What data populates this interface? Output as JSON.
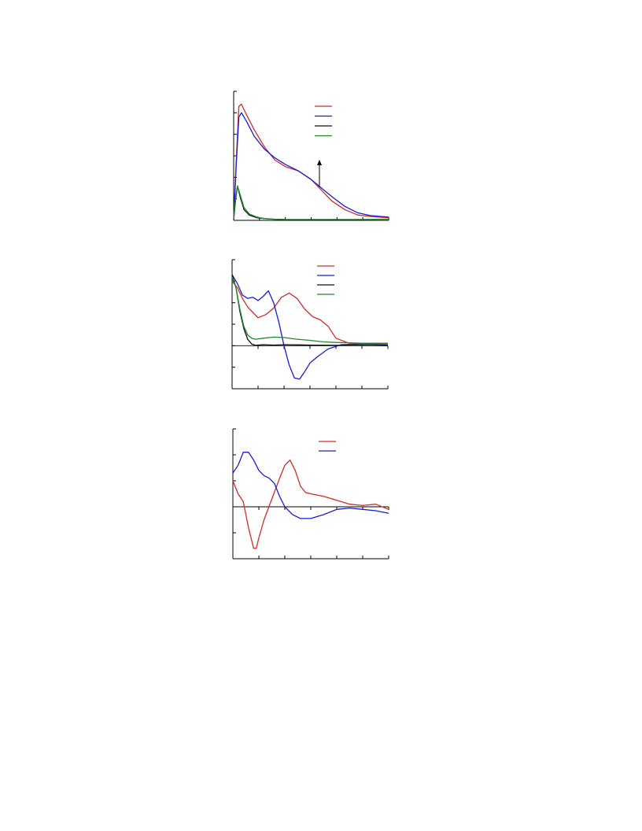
{
  "figure": {
    "panels": 3,
    "colors": {
      "red": "#d42a2a",
      "blue": "#1a1adb",
      "black": "#111111",
      "green": "#1f8a2a",
      "axis": "#000000"
    }
  },
  "chart_data": [
    {
      "type": "line",
      "panel": "top",
      "title": "",
      "xlabel": "",
      "ylabel": "",
      "xlim": [
        0,
        6
      ],
      "ylim": [
        0,
        6
      ],
      "grid": false,
      "legend": {
        "placement": "top-right",
        "entries": 4
      },
      "annotation": "upward-arrow",
      "series": [
        {
          "color": "red",
          "x": [
            0,
            0.1,
            0.2,
            0.3,
            0.5,
            0.8,
            1.2,
            1.6,
            2.0,
            2.5,
            3.0,
            3.4,
            3.8,
            4.3,
            4.8,
            5.3,
            6.0
          ],
          "y": [
            0,
            2.8,
            5.3,
            5.4,
            4.9,
            4.2,
            3.4,
            2.8,
            2.5,
            2.3,
            1.9,
            1.4,
            0.9,
            0.5,
            0.25,
            0.18,
            0.12
          ]
        },
        {
          "color": "blue",
          "x": [
            0,
            0.1,
            0.2,
            0.3,
            0.5,
            0.8,
            1.2,
            1.6,
            2.0,
            2.5,
            3.0,
            3.4,
            3.8,
            4.3,
            4.8,
            5.3,
            6.0
          ],
          "y": [
            0,
            2.6,
            4.8,
            5.0,
            4.6,
            3.9,
            3.3,
            2.9,
            2.6,
            2.3,
            1.9,
            1.5,
            1.1,
            0.65,
            0.35,
            0.22,
            0.15
          ]
        },
        {
          "color": "black",
          "x": [
            0,
            0.08,
            0.15,
            0.25,
            0.4,
            0.6,
            0.9,
            1.2,
            1.6,
            2.1
          ],
          "y": [
            0,
            1.0,
            1.6,
            1.1,
            0.5,
            0.25,
            0.12,
            0.08,
            0.05,
            0.03
          ]
        },
        {
          "color": "green",
          "x": [
            0,
            0.08,
            0.15,
            0.25,
            0.4,
            0.6,
            0.9,
            1.2,
            1.6,
            2.0,
            3.0,
            4.0,
            5.0,
            6.0
          ],
          "y": [
            0,
            1.1,
            1.6,
            1.2,
            0.6,
            0.3,
            0.15,
            0.08,
            0.05,
            0.04,
            0.04,
            0.04,
            0.04,
            0.05
          ]
        }
      ]
    },
    {
      "type": "line",
      "panel": "middle",
      "title": "",
      "xlabel": "",
      "ylabel": "",
      "xlim": [
        0,
        6
      ],
      "ylim": [
        -2,
        4
      ],
      "grid": false,
      "legend": {
        "placement": "top-right",
        "entries": 4
      },
      "series": [
        {
          "color": "red",
          "x": [
            0,
            0.2,
            0.4,
            0.6,
            0.8,
            1.0,
            1.3,
            1.6,
            1.9,
            2.2,
            2.5,
            2.8,
            3.1,
            3.4,
            3.7,
            4.0,
            4.5,
            5.0,
            6.0
          ],
          "y": [
            3.0,
            2.7,
            2.2,
            1.8,
            1.55,
            1.3,
            1.45,
            1.75,
            2.25,
            2.45,
            2.2,
            1.7,
            1.35,
            1.2,
            0.9,
            0.35,
            0.12,
            0.1,
            0.1
          ]
        },
        {
          "color": "blue",
          "x": [
            0,
            0.2,
            0.4,
            0.6,
            0.8,
            1.0,
            1.2,
            1.4,
            1.6,
            1.8,
            2.0,
            2.2,
            2.4,
            2.6,
            2.8,
            3.0,
            3.3,
            3.7,
            4.2,
            5.0,
            6.0
          ],
          "y": [
            3.3,
            2.9,
            2.35,
            2.2,
            2.25,
            2.1,
            2.3,
            2.55,
            2.0,
            1.1,
            0.0,
            -0.9,
            -1.5,
            -1.55,
            -1.2,
            -0.8,
            -0.5,
            -0.15,
            0.05,
            0.08,
            0.05
          ]
        },
        {
          "color": "black",
          "x": [
            0,
            0.15,
            0.3,
            0.45,
            0.6,
            0.75,
            0.9,
            1.2,
            1.6,
            2.0,
            3.0,
            4.0,
            5.0,
            6.0
          ],
          "y": [
            3.3,
            2.7,
            1.6,
            0.8,
            0.3,
            0.08,
            0.02,
            0.05,
            0.03,
            0.05,
            0.03,
            0.02,
            0.02,
            0.0
          ]
        },
        {
          "color": "green",
          "x": [
            0,
            0.15,
            0.3,
            0.45,
            0.6,
            0.75,
            0.9,
            1.2,
            1.6,
            2.0,
            2.5,
            3.0,
            3.5,
            4.0,
            5.0,
            6.0
          ],
          "y": [
            3.2,
            2.7,
            1.7,
            0.9,
            0.5,
            0.35,
            0.3,
            0.35,
            0.4,
            0.38,
            0.3,
            0.25,
            0.18,
            0.15,
            0.12,
            0.12
          ]
        }
      ]
    },
    {
      "type": "line",
      "panel": "bottom",
      "title": "",
      "xlabel": "",
      "ylabel": "",
      "xlim": [
        0,
        6
      ],
      "ylim": [
        -2,
        3
      ],
      "grid": false,
      "legend": {
        "placement": "top-right",
        "entries": 2
      },
      "series": [
        {
          "color": "red",
          "x": [
            0,
            0.2,
            0.4,
            0.6,
            0.8,
            0.9,
            1.0,
            1.2,
            1.5,
            1.8,
            2.0,
            2.2,
            2.4,
            2.6,
            2.8,
            3.0,
            3.5,
            4.0,
            4.5,
            5.0,
            5.5,
            6.0
          ],
          "y": [
            1.0,
            0.5,
            0.2,
            -0.8,
            -1.6,
            -1.6,
            -1.2,
            -0.5,
            0.3,
            1.1,
            1.6,
            1.8,
            1.4,
            0.8,
            0.55,
            0.5,
            0.4,
            0.25,
            0.1,
            0.05,
            0.1,
            -0.1
          ]
        },
        {
          "color": "blue",
          "x": [
            0,
            0.2,
            0.4,
            0.6,
            0.8,
            1.0,
            1.2,
            1.4,
            1.6,
            1.8,
            2.0,
            2.3,
            2.6,
            3.0,
            3.5,
            4.0,
            4.5,
            5.0,
            5.5,
            6.0
          ],
          "y": [
            1.3,
            1.6,
            2.1,
            2.1,
            1.8,
            1.4,
            1.2,
            1.1,
            0.9,
            0.4,
            0.0,
            -0.3,
            -0.45,
            -0.45,
            -0.3,
            -0.1,
            -0.05,
            -0.1,
            -0.15,
            -0.25
          ]
        }
      ]
    }
  ]
}
